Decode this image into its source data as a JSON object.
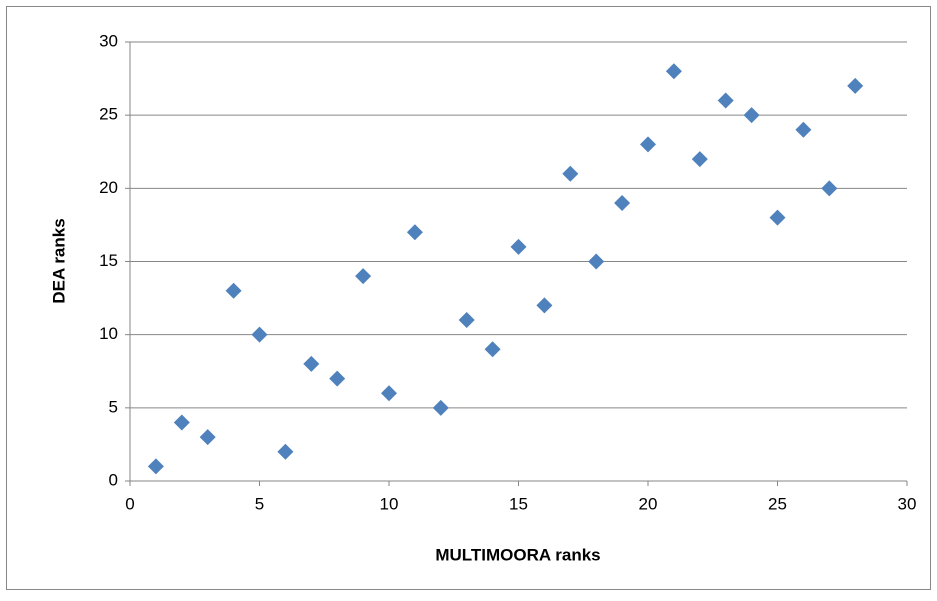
{
  "chart_data": {
    "type": "scatter",
    "x_label": "MULTIMOORA ranks",
    "y_label": "DEA ranks",
    "series": [
      {
        "color": "#4f81bd",
        "x": [
          1,
          2,
          3,
          4,
          5,
          6,
          7,
          8,
          9,
          10,
          11,
          12,
          13,
          14,
          15,
          16,
          17,
          18,
          19,
          20,
          21,
          22,
          23,
          24,
          25,
          26,
          27,
          28
        ],
        "values": [
          1,
          4,
          3,
          13,
          10,
          2,
          8,
          7,
          14,
          6,
          17,
          5,
          11,
          9,
          16,
          12,
          21,
          15,
          19,
          23,
          28,
          22,
          26,
          25,
          18,
          24,
          20,
          27
        ]
      }
    ],
    "xlim": [
      0,
      30
    ],
    "xticks": [
      0,
      5,
      10,
      15,
      20,
      25,
      30
    ],
    "ylim": [
      0,
      30
    ],
    "yticks": [
      0,
      5,
      10,
      15,
      20,
      25,
      30
    ],
    "grid": true
  }
}
